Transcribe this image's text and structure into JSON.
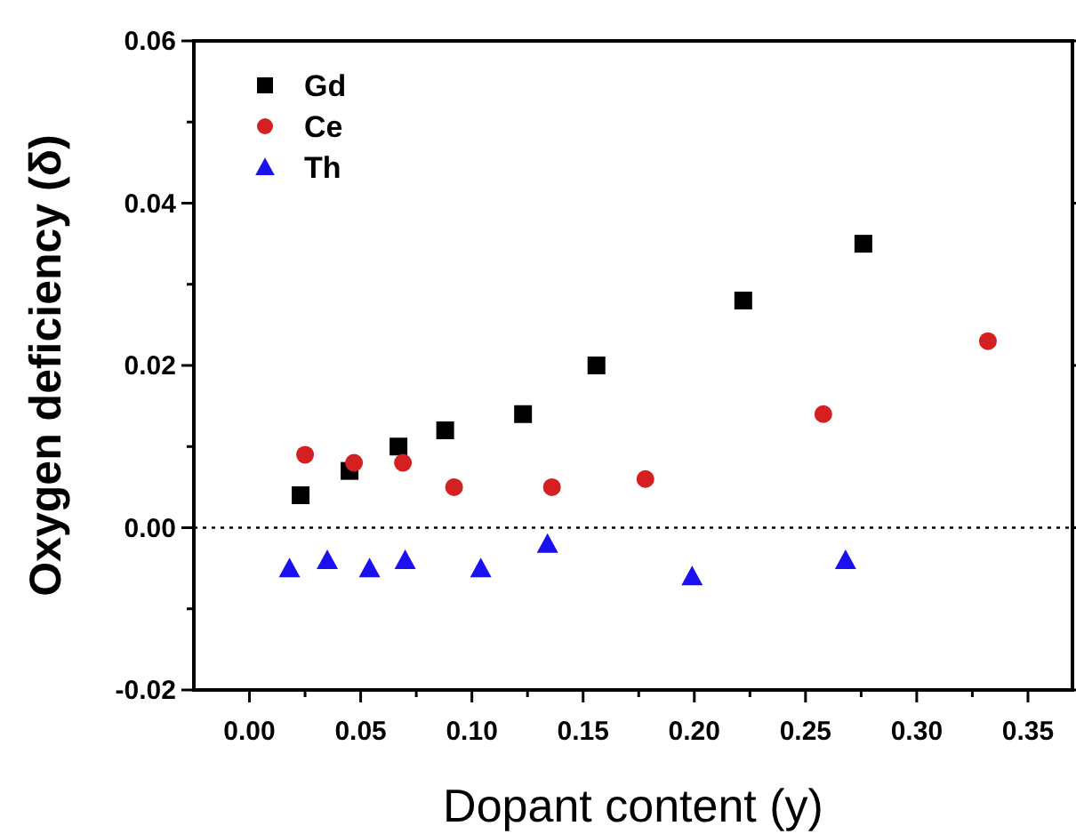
{
  "chart_data": {
    "type": "scatter",
    "xlabel": "Dopant content (y)",
    "ylabel": "Oxygen deficiency (δ)",
    "xlim": [
      -0.025,
      0.37
    ],
    "xticks": [
      {
        "value": 0,
        "label": "0.00"
      },
      {
        "value": 0.05,
        "label": "0.05"
      },
      {
        "value": 0.1,
        "label": "0.10"
      },
      0.15,
      {
        "value": 0.2,
        "label": "0.20"
      },
      0.25,
      {
        "value": 0.3,
        "label": "0.30"
      },
      0.35
    ],
    "ylim": [
      -0.02,
      0.06
    ],
    "yticks": [
      {
        "value": -0.02,
        "label": "-0.02"
      },
      {
        "value": 0,
        "label": "0.00"
      },
      {
        "value": 0.02,
        "label": "0.02"
      },
      {
        "value": 0.04,
        "label": "0.04"
      },
      {
        "value": 0.06,
        "label": "0.06"
      }
    ],
    "grid": false,
    "legend": "top left",
    "ref_lines": [
      {
        "axis": "y",
        "value": 0,
        "line_style": "dotted",
        "color": "#000000"
      }
    ],
    "series": [
      {
        "name": "Gd",
        "color": "#000000",
        "marker": "square",
        "x": [
          0.023,
          0.045,
          0.067,
          0.088,
          0.123,
          0.156,
          0.222,
          0.276
        ],
        "values": [
          0.004,
          0.007,
          0.01,
          0.012,
          0.014,
          0.02,
          0.028,
          0.035
        ]
      },
      {
        "name": "Ce",
        "color": "#d42020",
        "marker": "circle",
        "x": [
          0.025,
          0.047,
          0.069,
          0.092,
          0.136,
          0.178,
          0.258,
          0.332
        ],
        "values": [
          0.009,
          0.008,
          0.008,
          0.005,
          0.005,
          0.006,
          0.014,
          0.023
        ]
      },
      {
        "name": "Th",
        "color": "#1a10f0",
        "marker": "triangle",
        "x": [
          0.018,
          0.035,
          0.054,
          0.07,
          0.104,
          0.134,
          0.199,
          0.268
        ],
        "values": [
          -0.005,
          -0.004,
          -0.005,
          -0.004,
          -0.005,
          -0.002,
          -0.006,
          -0.004
        ]
      }
    ]
  }
}
